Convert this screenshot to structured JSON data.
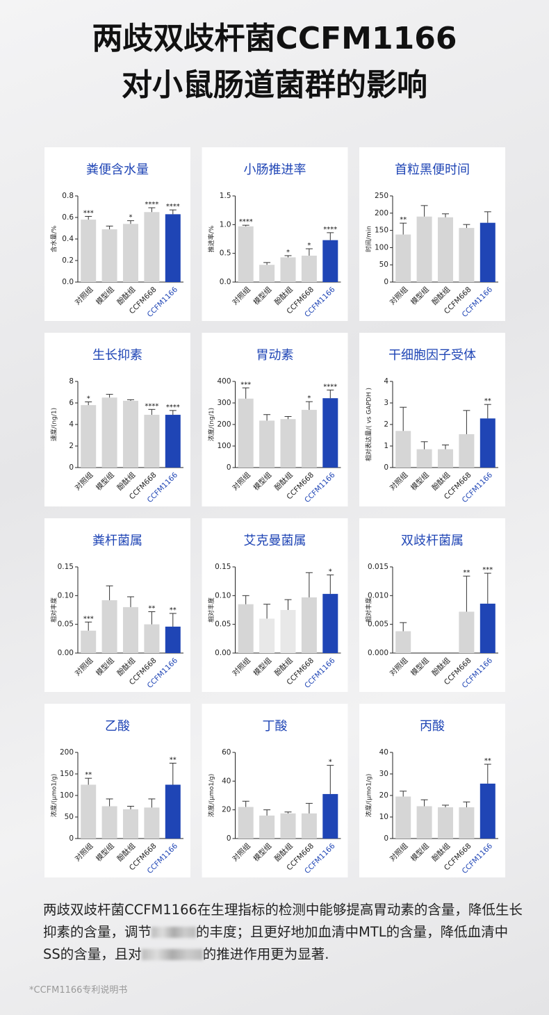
{
  "header": {
    "title_lines": [
      "两歧双歧杆菌CCFM1166",
      "对小鼠肠道菌群的影响"
    ]
  },
  "highlight_color": "#1f45b5",
  "chart_data": [
    {
      "type": "bar",
      "title": "粪便含水量",
      "ylabel": "含水量/%",
      "categories": [
        "对照组",
        "模型组",
        "酚酞组",
        "CCFM668",
        "CCFM1166"
      ],
      "values": [
        0.58,
        0.49,
        0.54,
        0.65,
        0.63
      ],
      "errors": [
        0.03,
        0.03,
        0.03,
        0.04,
        0.04
      ],
      "annotations": [
        "***",
        null,
        "*",
        "****",
        "****"
      ],
      "colors": [
        "#d6d6d6",
        "#d6d6d6",
        "#d6d6d6",
        "#d6d6d6",
        "#1f45b5"
      ],
      "ylim": [
        0,
        0.8
      ],
      "yticks": [
        {
          "value": 0,
          "label": "0.0"
        },
        0.2,
        0.4,
        0.6,
        0.8
      ]
    },
    {
      "type": "bar",
      "title": "小肠推进率",
      "ylabel": "推进率/%",
      "categories": [
        "对照组",
        "模型组",
        "酚酞组",
        "CCFM668",
        "CCFM1166"
      ],
      "values": [
        0.97,
        0.3,
        0.43,
        0.46,
        0.73
      ],
      "errors": [
        0.02,
        0.04,
        0.03,
        0.12,
        0.13
      ],
      "annotations": [
        "****",
        null,
        "*",
        "*",
        "****"
      ],
      "colors": [
        "#d6d6d6",
        "#d6d6d6",
        "#d6d6d6",
        "#d6d6d6",
        "#1f45b5"
      ],
      "ylim": [
        0,
        1.5
      ],
      "yticks": [
        {
          "value": 0,
          "label": "0.0"
        },
        0.5,
        {
          "value": 1,
          "label": "1.0"
        },
        1.5
      ]
    },
    {
      "type": "bar",
      "title": "首粒黑便时间",
      "ylabel": "时间/min",
      "categories": [
        "对照组",
        "模型组",
        "酚酞组",
        "CCFM668",
        "CCFM1166"
      ],
      "values": [
        138,
        190,
        188,
        157,
        172
      ],
      "errors": [
        33,
        32,
        10,
        10,
        32
      ],
      "annotations": [
        "**",
        null,
        null,
        null,
        null
      ],
      "colors": [
        "#d6d6d6",
        "#d6d6d6",
        "#d6d6d6",
        "#d6d6d6",
        "#1f45b5"
      ],
      "ylim": [
        0,
        250
      ],
      "yticks": [
        0,
        50,
        100,
        150,
        200,
        250
      ]
    },
    {
      "type": "bar",
      "title": "生长抑素",
      "ylabel": "速度/(ng/1)",
      "categories": [
        "对照组",
        "模型组",
        "酚酞组",
        "CCFM668",
        "CCFM1166"
      ],
      "values": [
        5.8,
        6.5,
        6.2,
        4.9,
        4.9
      ],
      "errors": [
        0.3,
        0.3,
        0.1,
        0.5,
        0.4
      ],
      "annotations": [
        "*",
        null,
        null,
        "****",
        "****"
      ],
      "colors": [
        "#d6d6d6",
        "#d6d6d6",
        "#d6d6d6",
        "#d6d6d6",
        "#1f45b5"
      ],
      "ylim": [
        0,
        8
      ],
      "yticks": [
        0,
        2,
        4,
        6,
        8
      ]
    },
    {
      "type": "bar",
      "title": "胃动素",
      "ylabel": "浓度/(ng/1)",
      "categories": [
        "对照组",
        "模型组",
        "酚酞组",
        "CCFM668",
        "CCFM1166"
      ],
      "values": [
        320,
        218,
        225,
        268,
        322
      ],
      "errors": [
        50,
        28,
        12,
        38,
        38
      ],
      "annotations": [
        "***",
        null,
        null,
        "*",
        "****"
      ],
      "colors": [
        "#d6d6d6",
        "#d6d6d6",
        "#d6d6d6",
        "#d6d6d6",
        "#1f45b5"
      ],
      "ylim": [
        0,
        400
      ],
      "yticks": [
        0,
        100,
        200,
        300,
        400
      ]
    },
    {
      "type": "bar",
      "title": "干细胞因子受体",
      "ylabel": "相对表达量/( vs GAPDH )",
      "categories": [
        "对照组",
        "模型组",
        "酚酞组",
        "CCFM668",
        "CCFM1166"
      ],
      "values": [
        1.7,
        0.85,
        0.85,
        1.55,
        2.28
      ],
      "errors": [
        1.1,
        0.35,
        0.2,
        1.1,
        0.65
      ],
      "annotations": [
        null,
        null,
        null,
        null,
        "**"
      ],
      "colors": [
        "#d6d6d6",
        "#d6d6d6",
        "#d6d6d6",
        "#d6d6d6",
        "#1f45b5"
      ],
      "ylim": [
        0,
        4
      ],
      "yticks": [
        0,
        1,
        2,
        3,
        4
      ]
    },
    {
      "type": "bar",
      "title": "粪杆菌属",
      "ylabel": "相对丰度",
      "categories": [
        "对照组",
        "模型组",
        "酚酞组",
        "CCFM668",
        "CCFM1166"
      ],
      "values": [
        0.039,
        0.092,
        0.08,
        0.05,
        0.046
      ],
      "errors": [
        0.015,
        0.025,
        0.018,
        0.022,
        0.023
      ],
      "annotations": [
        "***",
        null,
        null,
        "**",
        "**"
      ],
      "colors": [
        "#d6d6d6",
        "#d6d6d6",
        "#d6d6d6",
        "#d6d6d6",
        "#1f45b5"
      ],
      "ylim": [
        0,
        0.15
      ],
      "yticks": [
        {
          "value": 0,
          "label": "0.00"
        },
        0.05,
        {
          "value": 0.1,
          "label": "0.10"
        },
        0.15
      ]
    },
    {
      "type": "bar",
      "title": "艾克曼菌属",
      "ylabel": "相对丰度",
      "categories": [
        "对照组",
        "模型组",
        "酚酞组",
        "CCFM668",
        "CCFM1166"
      ],
      "values": [
        0.085,
        0.06,
        0.075,
        0.097,
        0.103
      ],
      "errors": [
        0.015,
        0.025,
        0.018,
        0.043,
        0.033
      ],
      "annotations": [
        null,
        null,
        null,
        null,
        "*"
      ],
      "colors": [
        "#d6d6d6",
        "#e8e8e8",
        "#e8e8e8",
        "#d6d6d6",
        "#1f45b5"
      ],
      "ylim": [
        0,
        0.15
      ],
      "yticks": [
        {
          "value": 0,
          "label": "0.00"
        },
        0.05,
        {
          "value": 0.1,
          "label": "0.10"
        },
        0.15
      ]
    },
    {
      "type": "bar",
      "title": "双歧杆菌属",
      "ylabel": "相对丰度",
      "categories": [
        "对照组",
        "模型组",
        "酚酞组",
        "CCFM668",
        "CCFM1166"
      ],
      "values": [
        0.0038,
        0,
        0,
        0.0072,
        0.0086
      ],
      "errors": [
        0.0015,
        null,
        null,
        0.0062,
        0.0053
      ],
      "annotations": [
        null,
        null,
        null,
        "**",
        "***"
      ],
      "colors": [
        "#d6d6d6",
        "#d6d6d6",
        "#d6d6d6",
        "#d6d6d6",
        "#1f45b5"
      ],
      "ylim": [
        0,
        0.015
      ],
      "yticks": [
        {
          "value": 0,
          "label": "0.000"
        },
        0.005,
        {
          "value": 0.01,
          "label": "0.010"
        },
        0.015
      ]
    },
    {
      "type": "bar",
      "title": "乙酸",
      "ylabel": "浓度/(μmo1/g)",
      "categories": [
        "对照组",
        "模型组",
        "酚酞组",
        "CCFM668",
        "CCFM1166"
      ],
      "values": [
        125,
        75,
        68,
        72,
        125
      ],
      "errors": [
        15,
        17,
        7,
        20,
        50
      ],
      "annotations": [
        "**",
        null,
        null,
        null,
        "**"
      ],
      "colors": [
        "#d6d6d6",
        "#d6d6d6",
        "#d6d6d6",
        "#d6d6d6",
        "#1f45b5"
      ],
      "ylim": [
        0,
        200
      ],
      "yticks": [
        0,
        50,
        100,
        150,
        200
      ]
    },
    {
      "type": "bar",
      "title": "丁酸",
      "ylabel": "浓度/(μmo1/g)",
      "categories": [
        "对照组",
        "模型组",
        "酚酞组",
        "CCFM668",
        "CCFM1166"
      ],
      "values": [
        22,
        16,
        17.5,
        17.5,
        31
      ],
      "errors": [
        4,
        4,
        1,
        7,
        20
      ],
      "annotations": [
        null,
        null,
        null,
        null,
        "*"
      ],
      "colors": [
        "#d6d6d6",
        "#d6d6d6",
        "#d6d6d6",
        "#d6d6d6",
        "#1f45b5"
      ],
      "ylim": [
        0,
        60
      ],
      "yticks": [
        0,
        20,
        40,
        60
      ]
    },
    {
      "type": "bar",
      "title": "丙酸",
      "ylabel": "浓度/(μmo1/g)",
      "categories": [
        "对照组",
        "模型组",
        "酚酞组",
        "CCFM668",
        "CCFM1166"
      ],
      "values": [
        19.5,
        15,
        14.5,
        14.5,
        25.5
      ],
      "errors": [
        2.5,
        3,
        1,
        2.5,
        9
      ],
      "annotations": [
        null,
        null,
        null,
        null,
        "**"
      ],
      "colors": [
        "#d6d6d6",
        "#d6d6d6",
        "#d6d6d6",
        "#d6d6d6",
        "#1f45b5"
      ],
      "ylim": [
        0,
        40
      ],
      "yticks": [
        0,
        10,
        20,
        30,
        40
      ]
    }
  ],
  "description": [
    "两歧双歧杆菌CCFM1166在生理指标的检测中能够提高胃动素的含量，降低生长抑素的含量，调节",
    "的丰度；且更好地加血清中MTL的含量，降低血清中SS的含量，且对",
    "的推进作用更为显著."
  ],
  "footnote": "*CCFM1166专利说明书"
}
